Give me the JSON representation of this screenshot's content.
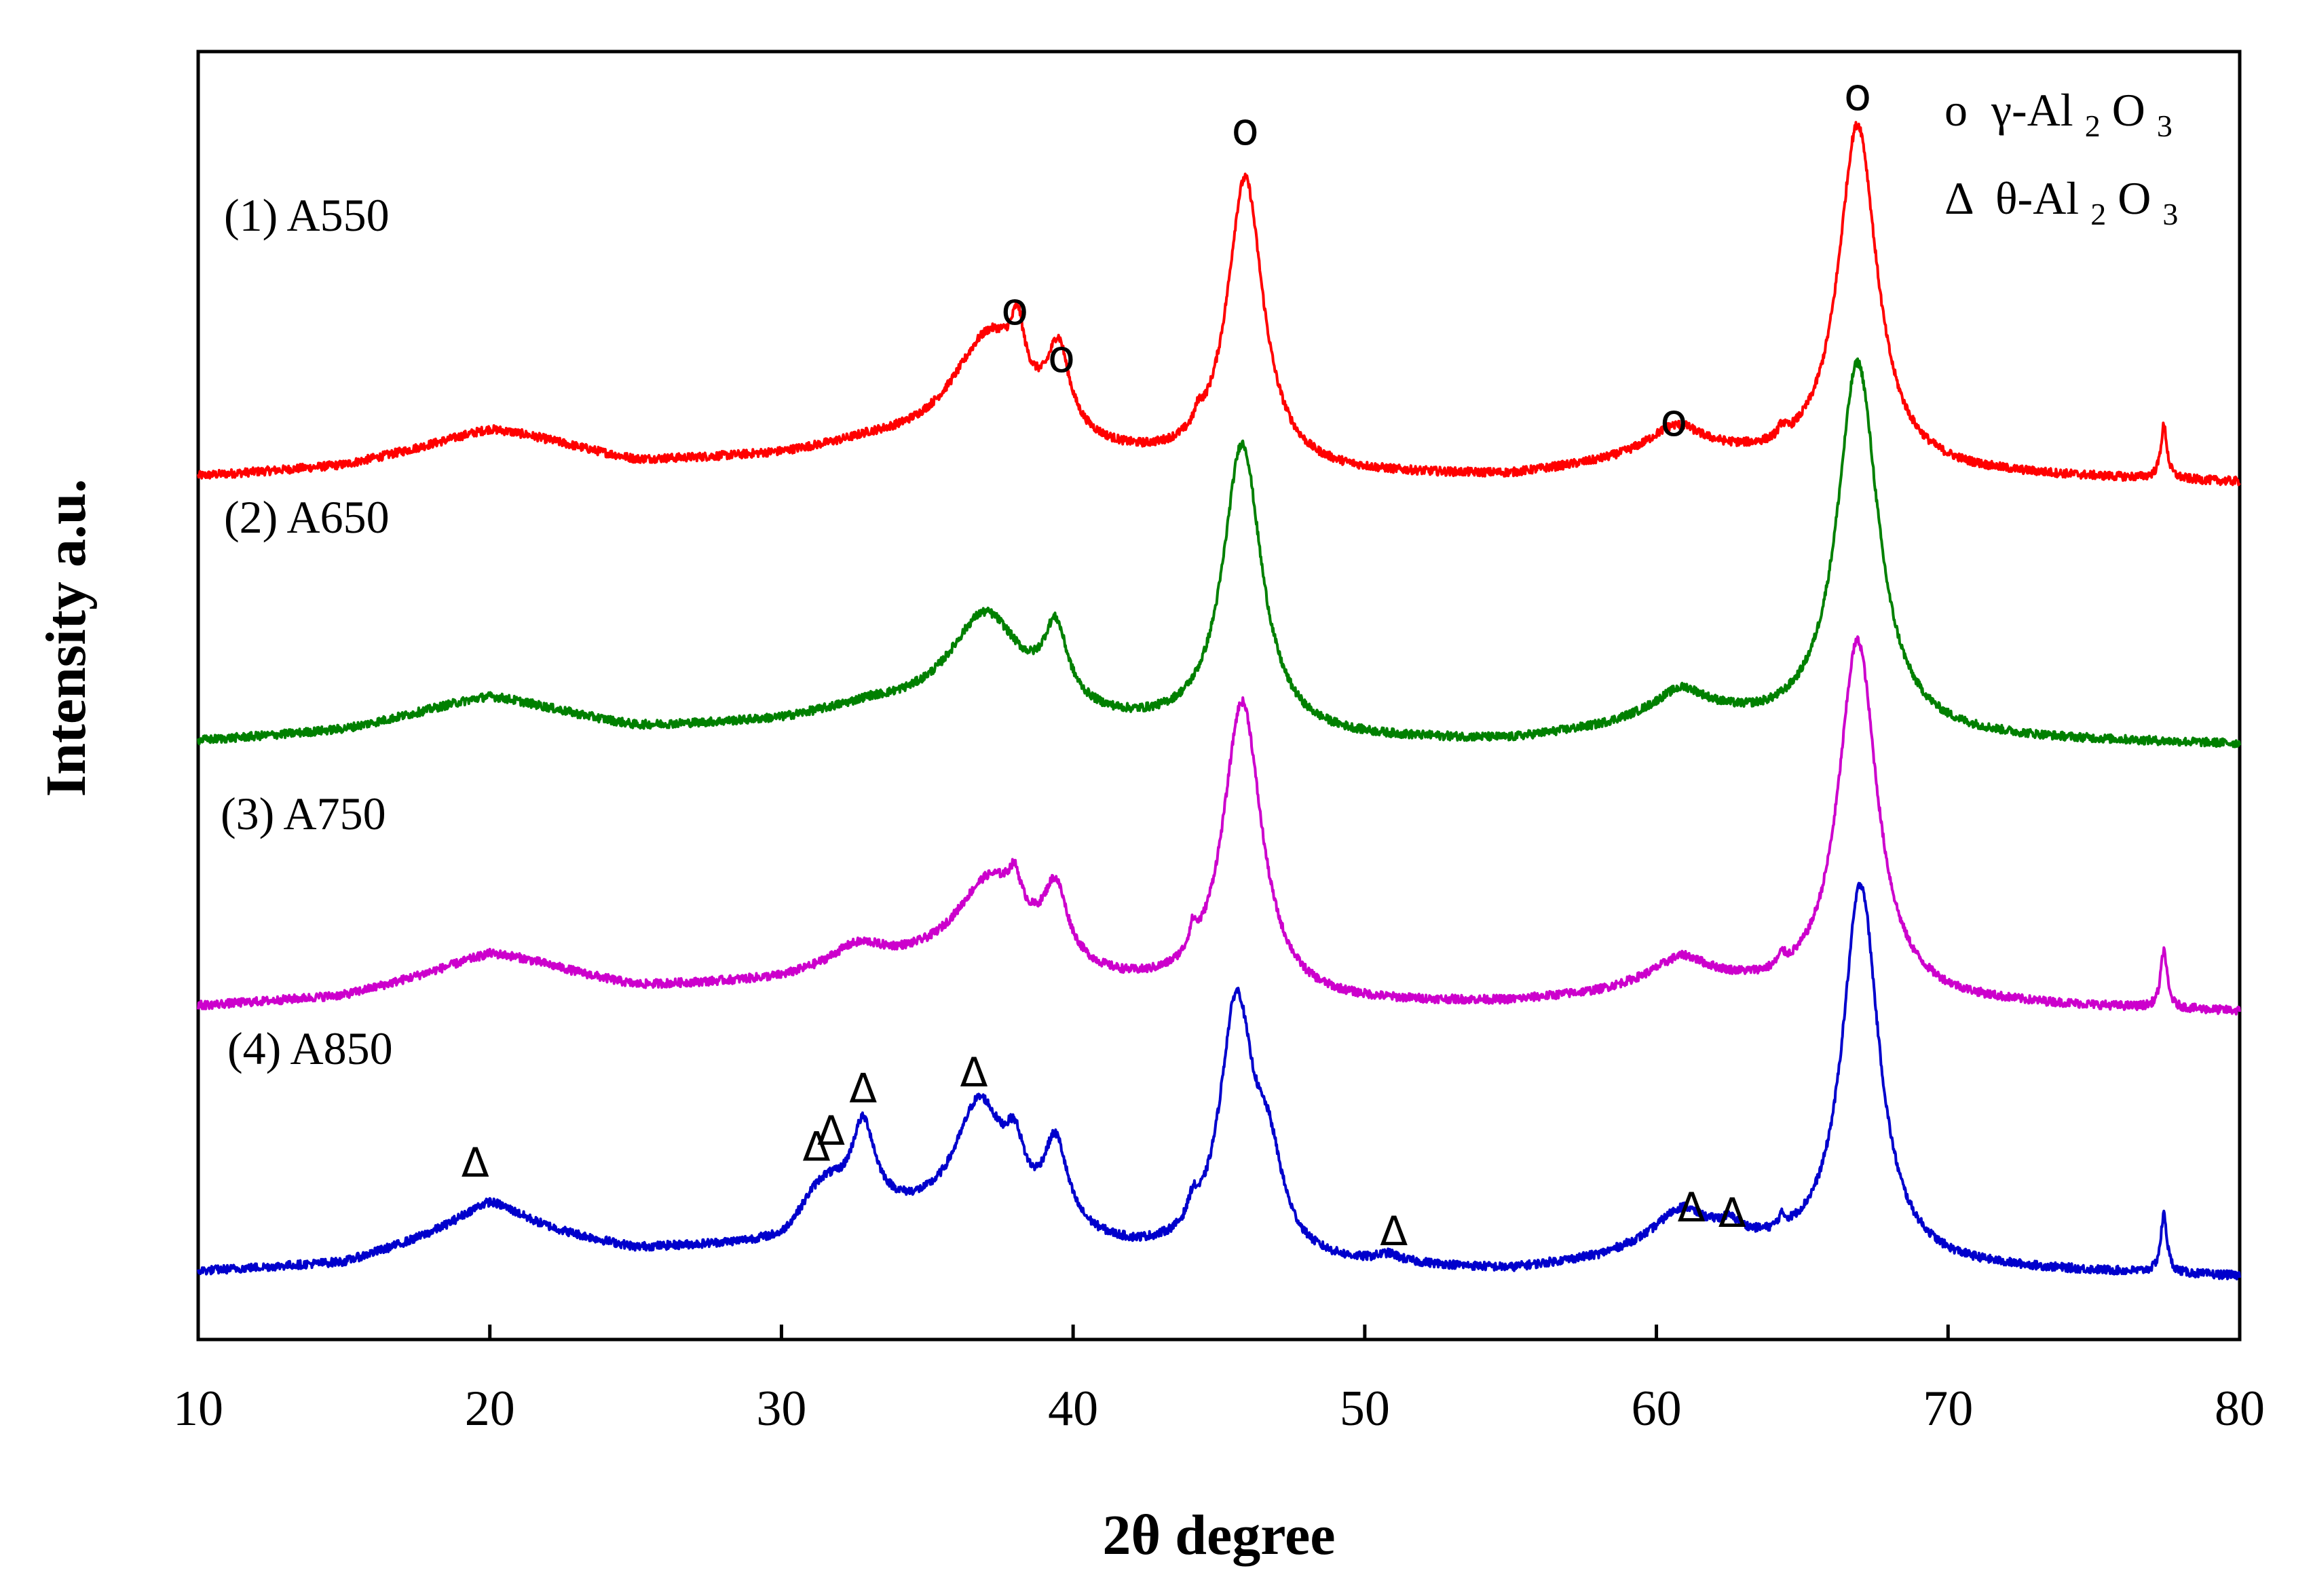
{
  "chart_data": {
    "type": "line",
    "title": "",
    "xlabel": "2θ degree",
    "ylabel": "Intensity a.u.",
    "xlim": [
      10,
      80
    ],
    "xticks": [
      10,
      20,
      30,
      40,
      50,
      60,
      70,
      80
    ],
    "xtick_labels": [
      "10",
      "20",
      "30",
      "40",
      "50",
      "60",
      "70",
      "80"
    ],
    "y_units": "arbitrary (traces vertically offset, ~0-100 each)",
    "grid": false,
    "legend": {
      "position": "top-right",
      "entries": [
        {
          "symbol": "o",
          "phase": "γ-Al",
          "sub1": "2",
          "mid": "O",
          "sub2": "3"
        },
        {
          "symbol": "Δ",
          "phase": "θ-Al",
          "sub1": "2",
          "mid": "O",
          "sub2": "3"
        }
      ]
    },
    "series": [
      {
        "name": "A550",
        "label": "(1) A550",
        "color": "#ff0000",
        "offset": 300,
        "baseline": [
          [
            10,
            2
          ],
          [
            15,
            5
          ],
          [
            20,
            14
          ],
          [
            25,
            6
          ],
          [
            30,
            9
          ],
          [
            33,
            13
          ],
          [
            36,
            12
          ],
          [
            42,
            6
          ],
          [
            48,
            2
          ],
          [
            55,
            2
          ],
          [
            58,
            6
          ],
          [
            61,
            11
          ],
          [
            64,
            7
          ],
          [
            70,
            3
          ],
          [
            80,
            0
          ]
        ],
        "peaks": [
          {
            "center": 20.5,
            "height": 6,
            "width": 3.5
          },
          {
            "center": 37.2,
            "height": 44,
            "width": 1.6
          },
          {
            "center": 38.1,
            "height": 20,
            "width": 0.25
          },
          {
            "center": 39.5,
            "height": 30,
            "width": 0.45
          },
          {
            "center": 44.3,
            "height": 5,
            "width": 0.15
          },
          {
            "center": 45.9,
            "height": 110,
            "width": 0.75
          },
          {
            "center": 60.6,
            "height": 9,
            "width": 1.1
          },
          {
            "center": 64.3,
            "height": 4,
            "width": 0.15
          },
          {
            "center": 66.9,
            "height": 130,
            "width": 0.8
          },
          {
            "center": 77.4,
            "height": 20,
            "width": 0.13
          }
        ]
      },
      {
        "name": "A650",
        "label": "(2) A650",
        "color": "#008000",
        "offset": 200,
        "baseline": [
          [
            10,
            2
          ],
          [
            15,
            5
          ],
          [
            20,
            13
          ],
          [
            25,
            6
          ],
          [
            30,
            9
          ],
          [
            33,
            14
          ],
          [
            36,
            12
          ],
          [
            42,
            6
          ],
          [
            48,
            2
          ],
          [
            55,
            2
          ],
          [
            58,
            6
          ],
          [
            61,
            12
          ],
          [
            64,
            7
          ],
          [
            70,
            3
          ],
          [
            80,
            1
          ]
        ],
        "peaks": [
          {
            "center": 20.0,
            "height": 6,
            "width": 3.5
          },
          {
            "center": 37.0,
            "height": 38,
            "width": 1.5
          },
          {
            "center": 39.4,
            "height": 28,
            "width": 0.5
          },
          {
            "center": 45.8,
            "height": 110,
            "width": 0.8
          },
          {
            "center": 60.8,
            "height": 8,
            "width": 1.1
          },
          {
            "center": 66.9,
            "height": 140,
            "width": 0.85
          }
        ]
      },
      {
        "name": "A750",
        "label": "(3) A750",
        "color": "#cc00cc",
        "offset": 100,
        "baseline": [
          [
            10,
            2
          ],
          [
            15,
            5
          ],
          [
            20,
            16
          ],
          [
            25,
            8
          ],
          [
            30,
            11
          ],
          [
            33,
            17
          ],
          [
            36,
            14
          ],
          [
            42,
            7
          ],
          [
            48,
            2
          ],
          [
            55,
            3
          ],
          [
            58,
            6
          ],
          [
            61,
            12
          ],
          [
            64,
            7
          ],
          [
            70,
            3
          ],
          [
            80,
            0
          ]
        ],
        "peaks": [
          {
            "center": 20.5,
            "height": 6,
            "width": 3.0
          },
          {
            "center": 32.5,
            "height": 6,
            "width": 1.0
          },
          {
            "center": 37.2,
            "height": 36,
            "width": 1.5
          },
          {
            "center": 38.0,
            "height": 12,
            "width": 0.25
          },
          {
            "center": 39.4,
            "height": 27,
            "width": 0.5
          },
          {
            "center": 44.1,
            "height": 8,
            "width": 0.15
          },
          {
            "center": 45.8,
            "height": 112,
            "width": 0.8
          },
          {
            "center": 60.8,
            "height": 7,
            "width": 1.1
          },
          {
            "center": 64.3,
            "height": 4,
            "width": 0.15
          },
          {
            "center": 66.9,
            "height": 135,
            "width": 0.8
          },
          {
            "center": 77.4,
            "height": 22,
            "width": 0.13
          }
        ]
      },
      {
        "name": "A850",
        "label": "(4) A850",
        "color": "#0000cc",
        "offset": 0,
        "baseline": [
          [
            10,
            2
          ],
          [
            15,
            5
          ],
          [
            20,
            20
          ],
          [
            25,
            10
          ],
          [
            30,
            12
          ],
          [
            31,
            20
          ],
          [
            33,
            22
          ],
          [
            36,
            20
          ],
          [
            42,
            8
          ],
          [
            48,
            3
          ],
          [
            52,
            3
          ],
          [
            55,
            2
          ],
          [
            58,
            6
          ],
          [
            61,
            14
          ],
          [
            64,
            9
          ],
          [
            70,
            3
          ],
          [
            80,
            0
          ]
        ],
        "peaks": [
          {
            "center": 20.0,
            "height": 8,
            "width": 1.5
          },
          {
            "center": 31.5,
            "height": 12,
            "width": 0.8
          },
          {
            "center": 32.8,
            "height": 32,
            "width": 0.5
          },
          {
            "center": 36.8,
            "height": 45,
            "width": 1.0
          },
          {
            "center": 38.0,
            "height": 20,
            "width": 0.4
          },
          {
            "center": 39.4,
            "height": 32,
            "width": 0.5
          },
          {
            "center": 44.1,
            "height": 8,
            "width": 0.2
          },
          {
            "center": 45.6,
            "height": 95,
            "width": 0.7
          },
          {
            "center": 46.7,
            "height": 30,
            "width": 0.6
          },
          {
            "center": 50.8,
            "height": 3,
            "width": 0.5
          },
          {
            "center": 60.8,
            "height": 10,
            "width": 1.0
          },
          {
            "center": 62.5,
            "height": 5,
            "width": 0.5
          },
          {
            "center": 64.3,
            "height": 4,
            "width": 0.15
          },
          {
            "center": 67.0,
            "height": 142,
            "width": 0.75
          },
          {
            "center": 77.4,
            "height": 22,
            "width": 0.13
          }
        ]
      }
    ],
    "annotations": [
      {
        "symbol": "o",
        "x": 38.0,
        "series": "A550",
        "y": 360
      },
      {
        "symbol": "o",
        "x": 39.6,
        "series": "A550",
        "y": 342
      },
      {
        "symbol": "o",
        "x": 45.9,
        "series": "A550",
        "y": 428
      },
      {
        "symbol": "o",
        "x": 60.6,
        "series": "A550",
        "y": 318
      },
      {
        "symbol": "o",
        "x": 66.9,
        "series": "A550",
        "y": 441
      },
      {
        "symbol": "Δ",
        "x": 19.5,
        "series": "A850",
        "y": 38
      },
      {
        "symbol": "Δ",
        "x": 31.2,
        "series": "A850",
        "y": 44
      },
      {
        "symbol": "Δ",
        "x": 31.7,
        "series": "A850",
        "y": 50
      },
      {
        "symbol": "Δ",
        "x": 32.8,
        "series": "A850",
        "y": 66
      },
      {
        "symbol": "Δ",
        "x": 36.6,
        "series": "A850",
        "y": 72
      },
      {
        "symbol": "Δ",
        "x": 51.0,
        "series": "A850",
        "y": 12
      },
      {
        "symbol": "Δ",
        "x": 61.2,
        "series": "A850",
        "y": 21
      },
      {
        "symbol": "Δ",
        "x": 62.6,
        "series": "A850",
        "y": 19
      }
    ]
  }
}
